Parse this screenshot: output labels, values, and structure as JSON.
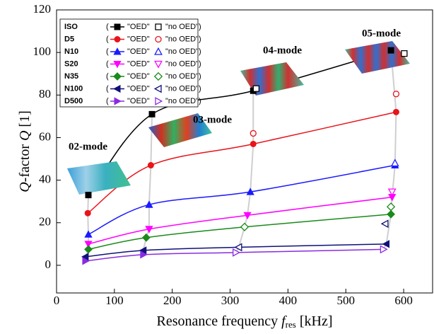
{
  "chart_data": {
    "type": "scatter",
    "x_label": [
      "Resonance frequency ",
      "f",
      "res",
      " [kHz]"
    ],
    "y_label": [
      "Q",
      "-factor ",
      "Q",
      " [1]"
    ],
    "xlim": [
      0,
      650
    ],
    "ylim": [
      -13,
      120
    ],
    "xticks": [
      0,
      100,
      200,
      300,
      400,
      500,
      600
    ],
    "yticks": [
      0,
      20,
      40,
      60,
      80,
      100,
      120
    ],
    "legend_labels": [
      "\"OED\"",
      "\"no OED\""
    ],
    "legend_brackets": [
      "(",
      ")"
    ],
    "annotations": [
      "02-mode",
      "03-mode",
      "04-mode",
      "05-mode"
    ],
    "series": [
      {
        "name": "ISO",
        "color": "#000000",
        "marker": "square",
        "x": [
          55,
          165,
          340,
          578
        ],
        "values": [
          33,
          71,
          82,
          101
        ],
        "x_no_oed": [
          345,
          601
        ],
        "values_no_oed": [
          83,
          99.5
        ]
      },
      {
        "name": "D5",
        "color": "#e8141a",
        "marker": "circle",
        "x": [
          54,
          163,
          340,
          587
        ],
        "values": [
          24.5,
          47,
          57,
          72
        ],
        "x_no_oed": [
          340,
          587
        ],
        "values_no_oed": [
          62,
          80.5
        ]
      },
      {
        "name": "N10",
        "color": "#1a1aff",
        "marker": "triangle-up",
        "x": [
          55,
          160,
          335,
          585
        ],
        "values": [
          14.5,
          28.5,
          34.5,
          47
        ],
        "x_no_oed": [
          585
        ],
        "values_no_oed": [
          48
        ]
      },
      {
        "name": "S20",
        "color": "#ff00ff",
        "marker": "triangle-down",
        "x": [
          55,
          160,
          330,
          580
        ],
        "values": [
          10,
          17,
          23.5,
          32
        ],
        "x_no_oed": [
          580
        ],
        "values_no_oed": [
          34.5
        ]
      },
      {
        "name": "N35",
        "color": "#1a8a1a",
        "marker": "diamond",
        "x": [
          55,
          155,
          325,
          578
        ],
        "values": [
          7.5,
          13,
          18,
          24
        ],
        "x_no_oed": [
          325,
          578
        ],
        "values_no_oed": [
          18,
          27.5
        ]
      },
      {
        "name": "N100",
        "color": "#10107a",
        "marker": "triangle-left",
        "x": [
          50,
          150,
          315,
          570
        ],
        "values": [
          4,
          7,
          8.5,
          10
        ],
        "x_no_oed": [
          315,
          568
        ],
        "values_no_oed": [
          8.5,
          19.5
        ]
      },
      {
        "name": "D500",
        "color": "#8a2be2",
        "marker": "triangle-right",
        "x": [
          50,
          150,
          310,
          565
        ],
        "values": [
          2,
          5,
          6,
          7.5
        ],
        "x_no_oed": [
          310,
          565
        ],
        "values_no_oed": [
          6,
          7.5
        ]
      }
    ]
  }
}
